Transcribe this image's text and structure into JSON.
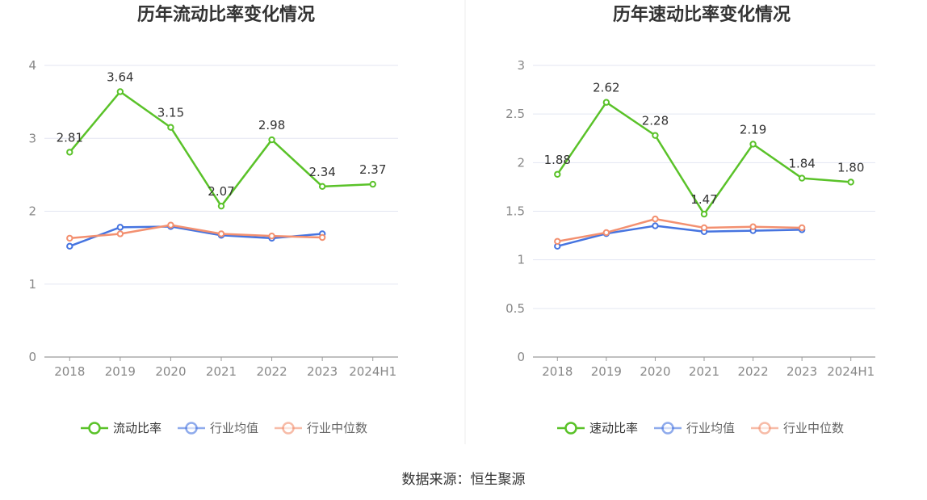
{
  "source_label": "数据来源：恒生聚源",
  "colors": {
    "main": "#5ac229",
    "avg": "#4674e0",
    "median": "#f39070",
    "grid": "#e3e6f2",
    "axis": "#9a9a9a",
    "divider": "#eeeeee"
  },
  "chart_data": [
    {
      "type": "line",
      "title": "历年流动比率变化情况",
      "categories": [
        "2018",
        "2019",
        "2020",
        "2021",
        "2022",
        "2023",
        "2024H1"
      ],
      "ylim": [
        0,
        4
      ],
      "yticks": [
        "0",
        "1",
        "2",
        "3",
        "4"
      ],
      "grid": true,
      "legend_position": "bottom",
      "series": [
        {
          "name": "流动比率",
          "color_key": "main",
          "values": [
            2.81,
            3.64,
            3.15,
            2.07,
            2.98,
            2.34,
            2.37
          ],
          "labels": [
            "2.81",
            "3.64",
            "3.15",
            "2.07",
            "2.98",
            "2.34",
            "2.37"
          ]
        },
        {
          "name": "行业均值",
          "color_key": "avg",
          "values": [
            1.52,
            1.78,
            1.79,
            1.67,
            1.63,
            1.69,
            null
          ]
        },
        {
          "name": "行业中位数",
          "color_key": "median",
          "values": [
            1.63,
            1.69,
            1.81,
            1.69,
            1.66,
            1.64,
            null
          ]
        }
      ]
    },
    {
      "type": "line",
      "title": "历年速动比率变化情况",
      "categories": [
        "2018",
        "2019",
        "2020",
        "2021",
        "2022",
        "2023",
        "2024H1"
      ],
      "ylim": [
        0,
        3
      ],
      "yticks": [
        "0",
        "0.5",
        "1",
        "1.5",
        "2",
        "2.5",
        "3"
      ],
      "grid": true,
      "legend_position": "bottom",
      "series": [
        {
          "name": "速动比率",
          "color_key": "main",
          "values": [
            1.88,
            2.62,
            2.28,
            1.47,
            2.19,
            1.84,
            1.8
          ],
          "labels": [
            "1.88",
            "2.62",
            "2.28",
            "1.47",
            "2.19",
            "1.84",
            "1.80"
          ]
        },
        {
          "name": "行业均值",
          "color_key": "avg",
          "values": [
            1.14,
            1.27,
            1.35,
            1.29,
            1.3,
            1.31,
            null
          ]
        },
        {
          "name": "行业中位数",
          "color_key": "median",
          "values": [
            1.19,
            1.28,
            1.42,
            1.33,
            1.34,
            1.33,
            null
          ]
        }
      ]
    }
  ]
}
